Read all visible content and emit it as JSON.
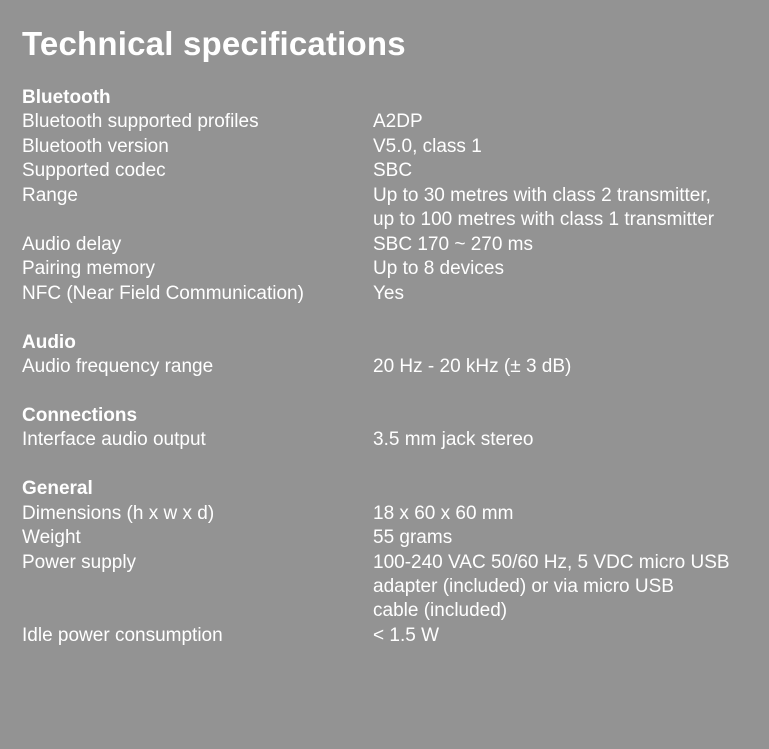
{
  "title": "Technical specifications",
  "sections": [
    {
      "header": "Bluetooth",
      "rows": [
        {
          "label": "Bluetooth supported profiles",
          "value": [
            "A2DP"
          ]
        },
        {
          "label": "Bluetooth version",
          "value": [
            "V5.0, class 1"
          ]
        },
        {
          "label": "Supported codec",
          "value": [
            "SBC"
          ]
        },
        {
          "label": "Range",
          "value": [
            "Up to 30 metres with class 2 transmitter,",
            "up to 100 metres with class 1 transmitter"
          ]
        },
        {
          "label": "Audio delay",
          "value": [
            "SBC 170 ~ 270 ms"
          ]
        },
        {
          "label": "Pairing memory",
          "value": [
            "Up to 8 devices"
          ]
        },
        {
          "label": "NFC (Near Field Communication)",
          "value": [
            "Yes"
          ]
        }
      ]
    },
    {
      "header": "Audio",
      "rows": [
        {
          "label": "Audio frequency range",
          "value": [
            "20 Hz - 20 kHz (± 3 dB)"
          ]
        }
      ]
    },
    {
      "header": "Connections",
      "rows": [
        {
          "label": "Interface audio output",
          "value": [
            "3.5 mm jack stereo"
          ]
        }
      ]
    },
    {
      "header": "General",
      "rows": [
        {
          "label": "Dimensions (h x w x d)",
          "value": [
            "18 x 60 x 60 mm"
          ]
        },
        {
          "label": "Weight",
          "value": [
            "55 grams"
          ]
        },
        {
          "label": "Power supply",
          "value": [
            "100-240 VAC 50/60 Hz, 5 VDC micro USB",
            "adapter (included) or via micro USB",
            "cable (included)"
          ]
        },
        {
          "label": "Idle power consumption",
          "value": [
            "< 1.5 W"
          ]
        }
      ]
    }
  ]
}
